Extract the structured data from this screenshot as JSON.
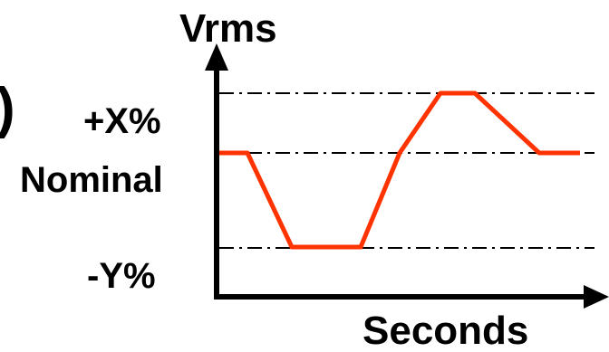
{
  "diagram": {
    "fragment": ")",
    "y_axis_label": "Vrms",
    "x_axis_label": "Seconds",
    "levels": {
      "upper": "+X%",
      "nominal": "Nominal",
      "lower": "-Y%"
    },
    "colors": {
      "waveform": "#ff3300",
      "axes": "#000000",
      "reference_lines": "#000000"
    }
  }
}
